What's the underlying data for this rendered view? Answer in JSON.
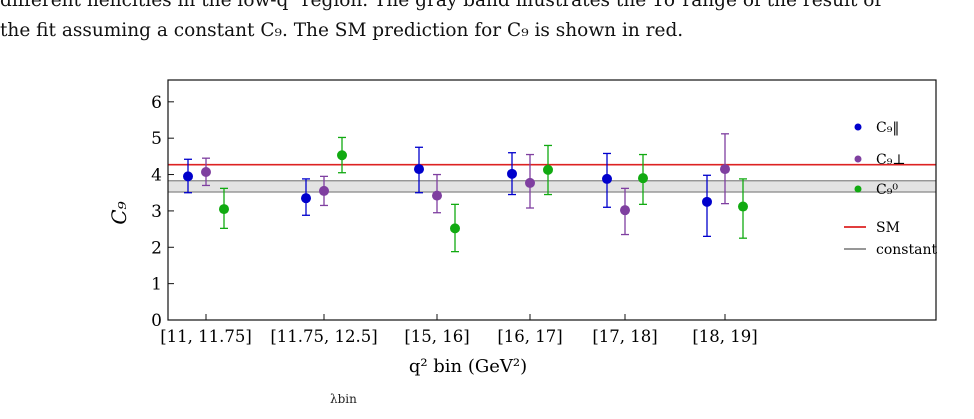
{
  "caption": {
    "line1": "different helicities in the low-q² region. The gray band illustrates the 1σ range of the result of",
    "line2": "the fit assuming a constant C₉. The SM prediction for C₉ is shown in red."
  },
  "footer_fragment": "λbin",
  "chart_data": {
    "type": "scatter",
    "ylabel": "C₉",
    "xlabel": "q² bin (GeV²)",
    "ylim": [
      0,
      6.6
    ],
    "yticks": [
      "0",
      "1",
      "2",
      "3",
      "4",
      "5",
      "6"
    ],
    "categories": [
      "[11, 11.75]",
      "[11.75, 12.5]",
      "[15, 16]",
      "[16, 17]",
      "[17, 18]",
      "[18, 19]"
    ],
    "series": [
      {
        "name": "C₉‖",
        "color": "#0000cc",
        "values": [
          3.95,
          3.35,
          4.15,
          4.02,
          3.88,
          3.25
        ],
        "err_low": [
          3.5,
          2.88,
          3.5,
          3.45,
          3.1,
          2.3
        ],
        "err_high": [
          4.42,
          3.88,
          4.75,
          4.6,
          4.58,
          3.98
        ]
      },
      {
        "name": "C₉⊥",
        "color": "#7f3fa0",
        "values": [
          4.07,
          3.55,
          3.42,
          3.77,
          3.02,
          4.15
        ],
        "err_low": [
          3.7,
          3.15,
          2.95,
          3.08,
          2.35,
          3.2
        ],
        "err_high": [
          4.45,
          3.95,
          4.0,
          4.55,
          3.62,
          5.12
        ]
      },
      {
        "name": "C₉⁰",
        "color": "#11aa11",
        "values": [
          3.05,
          4.53,
          2.52,
          4.13,
          3.9,
          3.12
        ],
        "err_low": [
          2.52,
          4.05,
          1.88,
          3.45,
          3.18,
          2.25
        ],
        "err_high": [
          3.62,
          5.02,
          3.18,
          4.8,
          4.55,
          3.88
        ]
      }
    ],
    "sm_value": 4.27,
    "sm_color": "#dd2222",
    "sm_label": "SM",
    "constant_band": [
      3.52,
      3.83
    ],
    "constant_value": 3.68,
    "constant_color": "#888888",
    "constant_label": "constant",
    "legend_position": "right"
  }
}
